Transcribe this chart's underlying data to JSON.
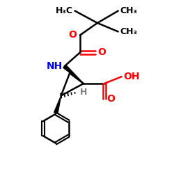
{
  "bg_color": "#ffffff",
  "bond_color": "#000000",
  "oxygen_color": "#ff0000",
  "nitrogen_color": "#0000ff",
  "hydrogen_color": "#808080",
  "line_width": 1.8,
  "font_size": 9,
  "fig_size": [
    2.5,
    2.5
  ],
  "dpi": 100,
  "xlim": [
    0,
    10
  ],
  "ylim": [
    0,
    10
  ]
}
